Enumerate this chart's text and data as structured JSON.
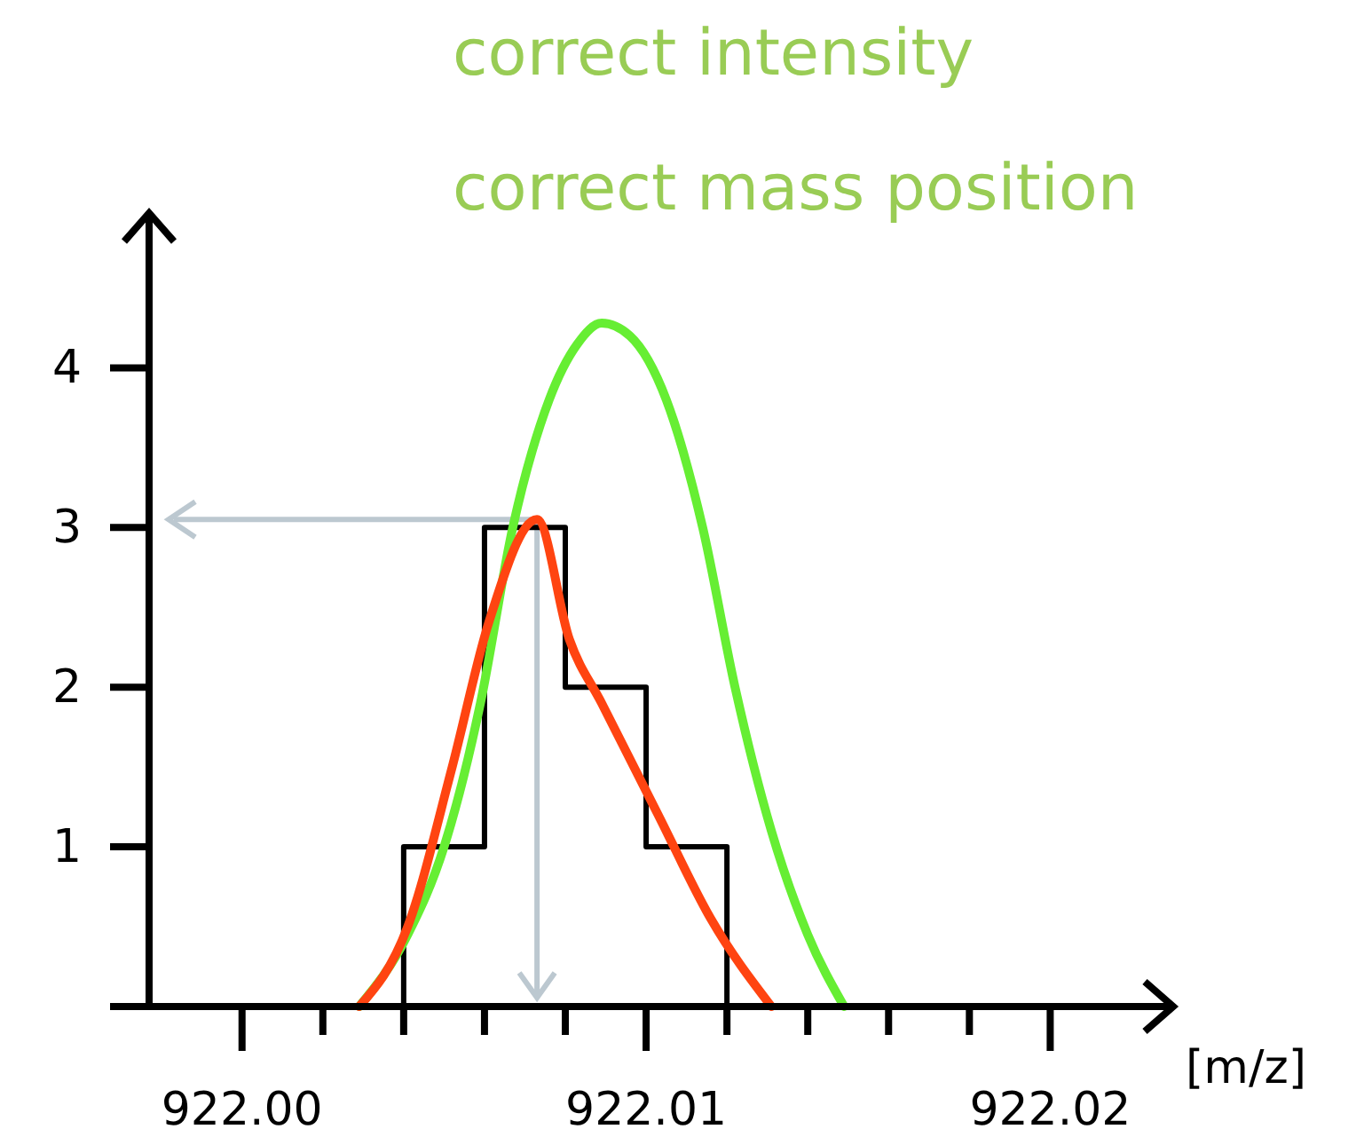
{
  "chart_data": {
    "type": "line",
    "title": "correct intensity",
    "subtitle": "correct mass position",
    "xlabel": "[m/z]",
    "xlim": [
      921.9977,
      922.023
    ],
    "ylim": [
      0,
      4.97
    ],
    "xticks": [
      {
        "value": 922.0,
        "label": "922.00"
      },
      {
        "value": 922.002,
        "label": null
      },
      {
        "value": 922.004,
        "label": null
      },
      {
        "value": 922.006,
        "label": null
      },
      {
        "value": 922.008,
        "label": null
      },
      {
        "value": 922.01,
        "label": "922.01"
      },
      {
        "value": 922.012,
        "label": null
      },
      {
        "value": 922.014,
        "label": null
      },
      {
        "value": 922.016,
        "label": null
      },
      {
        "value": 922.018,
        "label": null
      },
      {
        "value": 922.02,
        "label": "922.02"
      }
    ],
    "yticks": [
      1,
      2,
      3,
      4
    ],
    "grid": false,
    "marker": "none",
    "line_style": "solid",
    "series": [
      {
        "color": "#000000",
        "x": [
          922.004,
          922.004,
          922.006,
          922.006,
          922.008,
          922.008,
          922.01,
          922.01,
          922.012,
          922.012
        ],
        "values": [
          0,
          1,
          1,
          3,
          3,
          2,
          2,
          1,
          1,
          0
        ]
      },
      {
        "color": "#66ee33",
        "x": [
          922.0029,
          922.0041,
          922.005,
          922.0059,
          922.0067,
          922.0076,
          922.0083,
          922.0089,
          922.0096,
          922.0105,
          922.0114,
          922.0122,
          922.0131,
          922.014,
          922.0149
        ],
        "values": [
          0,
          0.45,
          1.0,
          1.9,
          3.0,
          3.8,
          4.15,
          4.28,
          4.2,
          3.8,
          3.0,
          2.0,
          1.1,
          0.45,
          0
        ]
      },
      {
        "color": "#ff4411",
        "x": [
          922.0029,
          922.0041,
          922.0052,
          922.0061,
          922.0073,
          922.0081,
          922.0089,
          922.0103,
          922.0116,
          922.0131
        ],
        "values": [
          0,
          0.5,
          1.5,
          2.4,
          3.05,
          2.3,
          1.9,
          1.2,
          0.55,
          0
        ]
      }
    ]
  }
}
